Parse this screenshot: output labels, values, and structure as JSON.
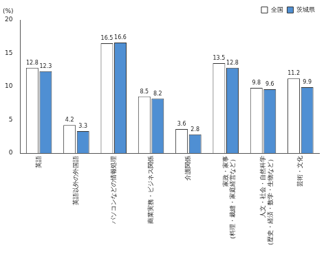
{
  "chart_data": {
    "type": "bar",
    "ylabel": "(%)",
    "categories": [
      "英語",
      "英語以外の外国語",
      "パソコンなどの情報処理",
      "商業実務・ビジネス関係",
      "介護関係",
      "家政・家事（料理・裁縫・家庭経営など）",
      "人文・社会・自然科学（歴史・経済・数学・生物など）",
      "芸術・文化"
    ],
    "series": [
      {
        "name": "全国",
        "color": "#ffffff",
        "values": [
          12.8,
          4.2,
          16.5,
          8.5,
          3.6,
          13.5,
          9.8,
          11.2
        ]
      },
      {
        "name": "茨城県",
        "color": "#4f8fd3",
        "values": [
          12.3,
          3.3,
          16.6,
          8.2,
          2.8,
          12.8,
          9.6,
          9.9
        ]
      }
    ],
    "ylim": [
      0,
      20
    ],
    "yticks": [
      0,
      5,
      10,
      15,
      20
    ],
    "grid": false,
    "legend": "upper right",
    "data_labels": true
  }
}
